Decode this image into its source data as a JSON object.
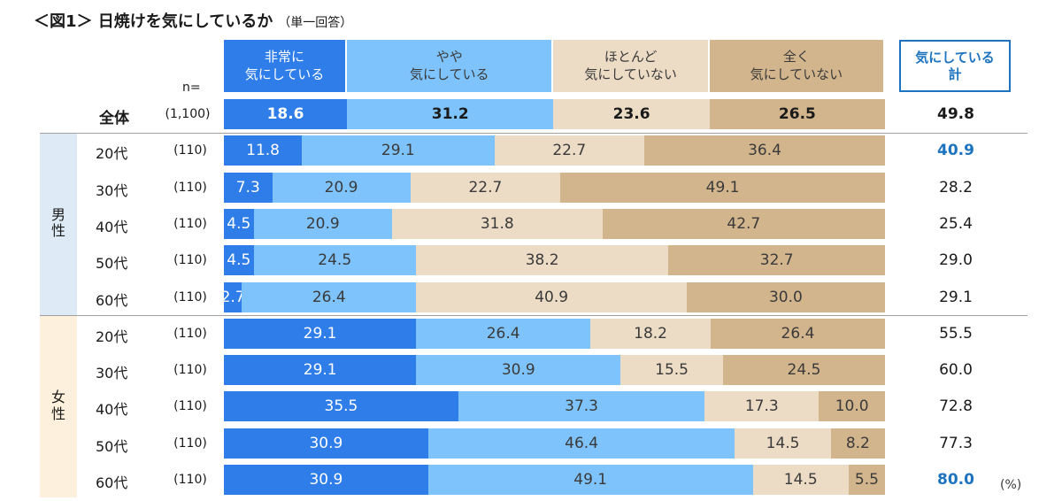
{
  "title": "＜図1＞ 日焼けを気にしているか",
  "subtitle": "（単一回答）",
  "n_label": "n=",
  "total_box_label": "気にしている\n計",
  "unit_label": "(%)",
  "chart_data": {
    "type": "bar",
    "orientation": "horizontal",
    "stacked": true,
    "percent": true,
    "series": [
      {
        "name": "非常に\n気にしている",
        "color": "#2e7de8"
      },
      {
        "name": "やや\n気にしている",
        "color": "#7ec3fb"
      },
      {
        "name": "ほとんど\n気にしていない",
        "color": "#ecdcc6"
      },
      {
        "name": "全く\n気にしていない",
        "color": "#d2b58c"
      }
    ],
    "groups": [
      {
        "name": "",
        "bg": null
      },
      {
        "name": "男\n性",
        "bg": "#deebf7"
      },
      {
        "name": "女\n性",
        "bg": "#fdf0dc"
      }
    ],
    "rows": [
      {
        "label": "全体",
        "n": "(1,100)",
        "group": 0,
        "values": [
          "18.6",
          "31.2",
          "23.6",
          "26.5"
        ],
        "total": "49.8",
        "bold": true
      },
      {
        "label": "20代",
        "n": "(110)",
        "group": 1,
        "values": [
          "11.8",
          "29.1",
          "22.7",
          "36.4"
        ],
        "total": "40.9",
        "highlight": true
      },
      {
        "label": "30代",
        "n": "(110)",
        "group": 1,
        "values": [
          "7.3",
          "20.9",
          "22.7",
          "49.1"
        ],
        "total": "28.2"
      },
      {
        "label": "40代",
        "n": "(110)",
        "group": 1,
        "values": [
          "4.5",
          "20.9",
          "31.8",
          "42.7"
        ],
        "total": "25.4"
      },
      {
        "label": "50代",
        "n": "(110)",
        "group": 1,
        "values": [
          "4.5",
          "24.5",
          "38.2",
          "32.7"
        ],
        "total": "29.0"
      },
      {
        "label": "60代",
        "n": "(110)",
        "group": 1,
        "values": [
          "2.7",
          "26.4",
          "40.9",
          "30.0"
        ],
        "total": "29.1"
      },
      {
        "label": "20代",
        "n": "(110)",
        "group": 2,
        "values": [
          "29.1",
          "26.4",
          "18.2",
          "26.4"
        ],
        "total": "55.5"
      },
      {
        "label": "30代",
        "n": "(110)",
        "group": 2,
        "values": [
          "29.1",
          "30.9",
          "15.5",
          "24.5"
        ],
        "total": "60.0"
      },
      {
        "label": "40代",
        "n": "(110)",
        "group": 2,
        "values": [
          "35.5",
          "37.3",
          "17.3",
          "10.0"
        ],
        "total": "72.8"
      },
      {
        "label": "50代",
        "n": "(110)",
        "group": 2,
        "values": [
          "30.9",
          "46.4",
          "14.5",
          "8.2"
        ],
        "total": "77.3"
      },
      {
        "label": "60代",
        "n": "(110)",
        "group": 2,
        "values": [
          "30.9",
          "49.1",
          "14.5",
          "5.5"
        ],
        "total": "80.0",
        "highlight": true
      }
    ]
  }
}
